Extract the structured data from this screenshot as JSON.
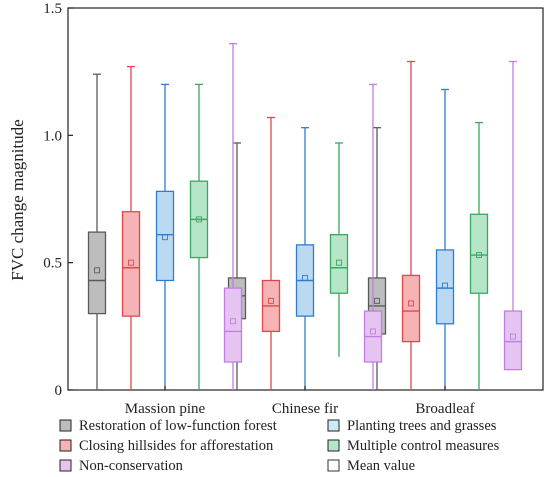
{
  "chart_data": {
    "type": "box",
    "title": "",
    "xlabel": "",
    "ylabel": "FVC change magnitude",
    "ylim": [
      0,
      1.5
    ],
    "yticks": [
      0,
      0.5,
      1.0,
      1.5
    ],
    "ytick_labels": [
      "0",
      "0.5",
      "1.0",
      "1.5"
    ],
    "categories": [
      "Massion pine",
      "Chinese fir",
      "Broadleaf"
    ],
    "legend_position": "bottom",
    "legend": [
      {
        "label": "Restoration of low-function forest",
        "color": "#7f7f7f",
        "fill": "#bdbdbd"
      },
      {
        "label": "Planting trees and grasses",
        "color": "#9fd8f0",
        "fill": "#c9ecf7"
      },
      {
        "label": "Closing hillsides for afforestation",
        "color": "#e0474c",
        "fill": "#f6b3b5"
      },
      {
        "label": "Multiple control measures",
        "color": "#3aa860",
        "fill": "#b6e6c7"
      },
      {
        "label": "Non-conservation",
        "color": "#c27ee0",
        "fill": "#e6c4f2"
      },
      {
        "label": "Mean value",
        "color": "#333333",
        "fill": "#ffffff"
      }
    ],
    "series": [
      {
        "color": "#5a5a5a",
        "fill": "#bdbdbd",
        "boxes": [
          {
            "min": 0.0,
            "q1": 0.3,
            "median": 0.43,
            "q3": 0.62,
            "max": 1.24,
            "mean": 0.47
          },
          {
            "min": 0.0,
            "q1": 0.28,
            "median": 0.37,
            "q3": 0.44,
            "max": 0.97,
            "mean": 0.38
          },
          {
            "min": 0.0,
            "q1": 0.22,
            "median": 0.33,
            "q3": 0.44,
            "max": 1.03,
            "mean": 0.35
          }
        ]
      },
      {
        "color": "#e0474c",
        "fill": "#f6b3b5",
        "boxes": [
          {
            "min": 0.0,
            "q1": 0.29,
            "median": 0.48,
            "q3": 0.7,
            "max": 1.27,
            "mean": 0.5
          },
          {
            "min": 0.0,
            "q1": 0.23,
            "median": 0.33,
            "q3": 0.43,
            "max": 1.07,
            "mean": 0.35
          },
          {
            "min": 0.0,
            "q1": 0.19,
            "median": 0.31,
            "q3": 0.45,
            "max": 1.29,
            "mean": 0.34
          }
        ]
      },
      {
        "color": "#2f7dd1",
        "fill": "#bcd9f2",
        "boxes": [
          {
            "min": 0.0,
            "q1": 0.43,
            "median": 0.61,
            "q3": 0.78,
            "max": 1.2,
            "mean": 0.6
          },
          {
            "min": 0.0,
            "q1": 0.29,
            "median": 0.43,
            "q3": 0.57,
            "max": 1.03,
            "mean": 0.44
          },
          {
            "min": 0.0,
            "q1": 0.26,
            "median": 0.4,
            "q3": 0.55,
            "max": 1.18,
            "mean": 0.41
          }
        ]
      },
      {
        "color": "#3aa860",
        "fill": "#b6e6c7",
        "boxes": [
          {
            "min": 0.0,
            "q1": 0.52,
            "median": 0.67,
            "q3": 0.82,
            "max": 1.2,
            "mean": 0.67
          },
          {
            "min": 0.13,
            "q1": 0.38,
            "median": 0.48,
            "q3": 0.61,
            "max": 0.97,
            "mean": 0.5
          },
          {
            "min": 0.0,
            "q1": 0.38,
            "median": 0.53,
            "q3": 0.69,
            "max": 1.05,
            "mean": 0.53
          }
        ]
      },
      {
        "color": "#c27ee0",
        "fill": "#e6c4f2",
        "boxes": [
          {
            "min": 0.0,
            "q1": 0.11,
            "median": 0.23,
            "q3": 0.4,
            "max": 1.36,
            "mean": 0.27
          },
          {
            "min": 0.0,
            "q1": 0.11,
            "median": 0.21,
            "q3": 0.31,
            "max": 1.2,
            "mean": 0.23
          },
          {
            "min": 0.08,
            "q1": 0.08,
            "median": 0.19,
            "q3": 0.31,
            "max": 1.29,
            "mean": 0.21
          }
        ]
      }
    ]
  }
}
